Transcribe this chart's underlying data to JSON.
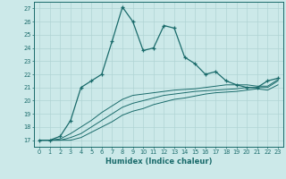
{
  "xlabel": "Humidex (Indice chaleur)",
  "bg_color": "#cce9e9",
  "line_color": "#1a6b6b",
  "grid_color": "#b0d4d4",
  "xlim": [
    -0.5,
    23.5
  ],
  "ylim": [
    16.5,
    27.5
  ],
  "yticks": [
    17,
    18,
    19,
    20,
    21,
    22,
    23,
    24,
    25,
    26,
    27
  ],
  "xticks": [
    0,
    1,
    2,
    3,
    4,
    5,
    6,
    7,
    8,
    9,
    10,
    11,
    12,
    13,
    14,
    15,
    16,
    17,
    18,
    19,
    20,
    21,
    22,
    23
  ],
  "line1_x": [
    0,
    1,
    2,
    3,
    4,
    5,
    6,
    7,
    8,
    9,
    10,
    11,
    12,
    13,
    14,
    15,
    16,
    17,
    18,
    19,
    20,
    21,
    22,
    23
  ],
  "line1_y": [
    17,
    17,
    17.3,
    18.5,
    21.0,
    21.5,
    22.0,
    24.5,
    27.1,
    26.0,
    23.8,
    24.0,
    25.7,
    25.5,
    23.3,
    22.8,
    22.0,
    22.2,
    21.5,
    21.2,
    21.0,
    21.0,
    21.5,
    21.7
  ],
  "line2_x": [
    0,
    1,
    2,
    3,
    4,
    5,
    6,
    7,
    8,
    9,
    10,
    11,
    12,
    13,
    14,
    15,
    16,
    17,
    18,
    19,
    20,
    21,
    22,
    23
  ],
  "line2_y": [
    17,
    17,
    17.1,
    17.5,
    18.0,
    18.5,
    19.1,
    19.6,
    20.1,
    20.4,
    20.5,
    20.6,
    20.7,
    20.8,
    20.85,
    20.9,
    21.0,
    21.1,
    21.2,
    21.2,
    21.2,
    21.1,
    21.1,
    21.6
  ],
  "line3_x": [
    0,
    1,
    2,
    3,
    4,
    5,
    6,
    7,
    8,
    9,
    10,
    11,
    12,
    13,
    14,
    15,
    16,
    17,
    18,
    19,
    20,
    21,
    22,
    23
  ],
  "line3_y": [
    17,
    17,
    17.0,
    17.2,
    17.5,
    18.0,
    18.5,
    19.0,
    19.5,
    19.8,
    20.0,
    20.2,
    20.4,
    20.5,
    20.6,
    20.7,
    20.75,
    20.8,
    20.85,
    20.9,
    21.0,
    21.0,
    21.0,
    21.5
  ],
  "line4_x": [
    0,
    1,
    2,
    3,
    4,
    5,
    6,
    7,
    8,
    9,
    10,
    11,
    12,
    13,
    14,
    15,
    16,
    17,
    18,
    19,
    20,
    21,
    22,
    23
  ],
  "line4_y": [
    17,
    17,
    17.0,
    17.0,
    17.2,
    17.6,
    18.0,
    18.4,
    18.9,
    19.2,
    19.4,
    19.7,
    19.9,
    20.1,
    20.2,
    20.35,
    20.5,
    20.6,
    20.65,
    20.7,
    20.8,
    20.9,
    20.8,
    21.2
  ]
}
